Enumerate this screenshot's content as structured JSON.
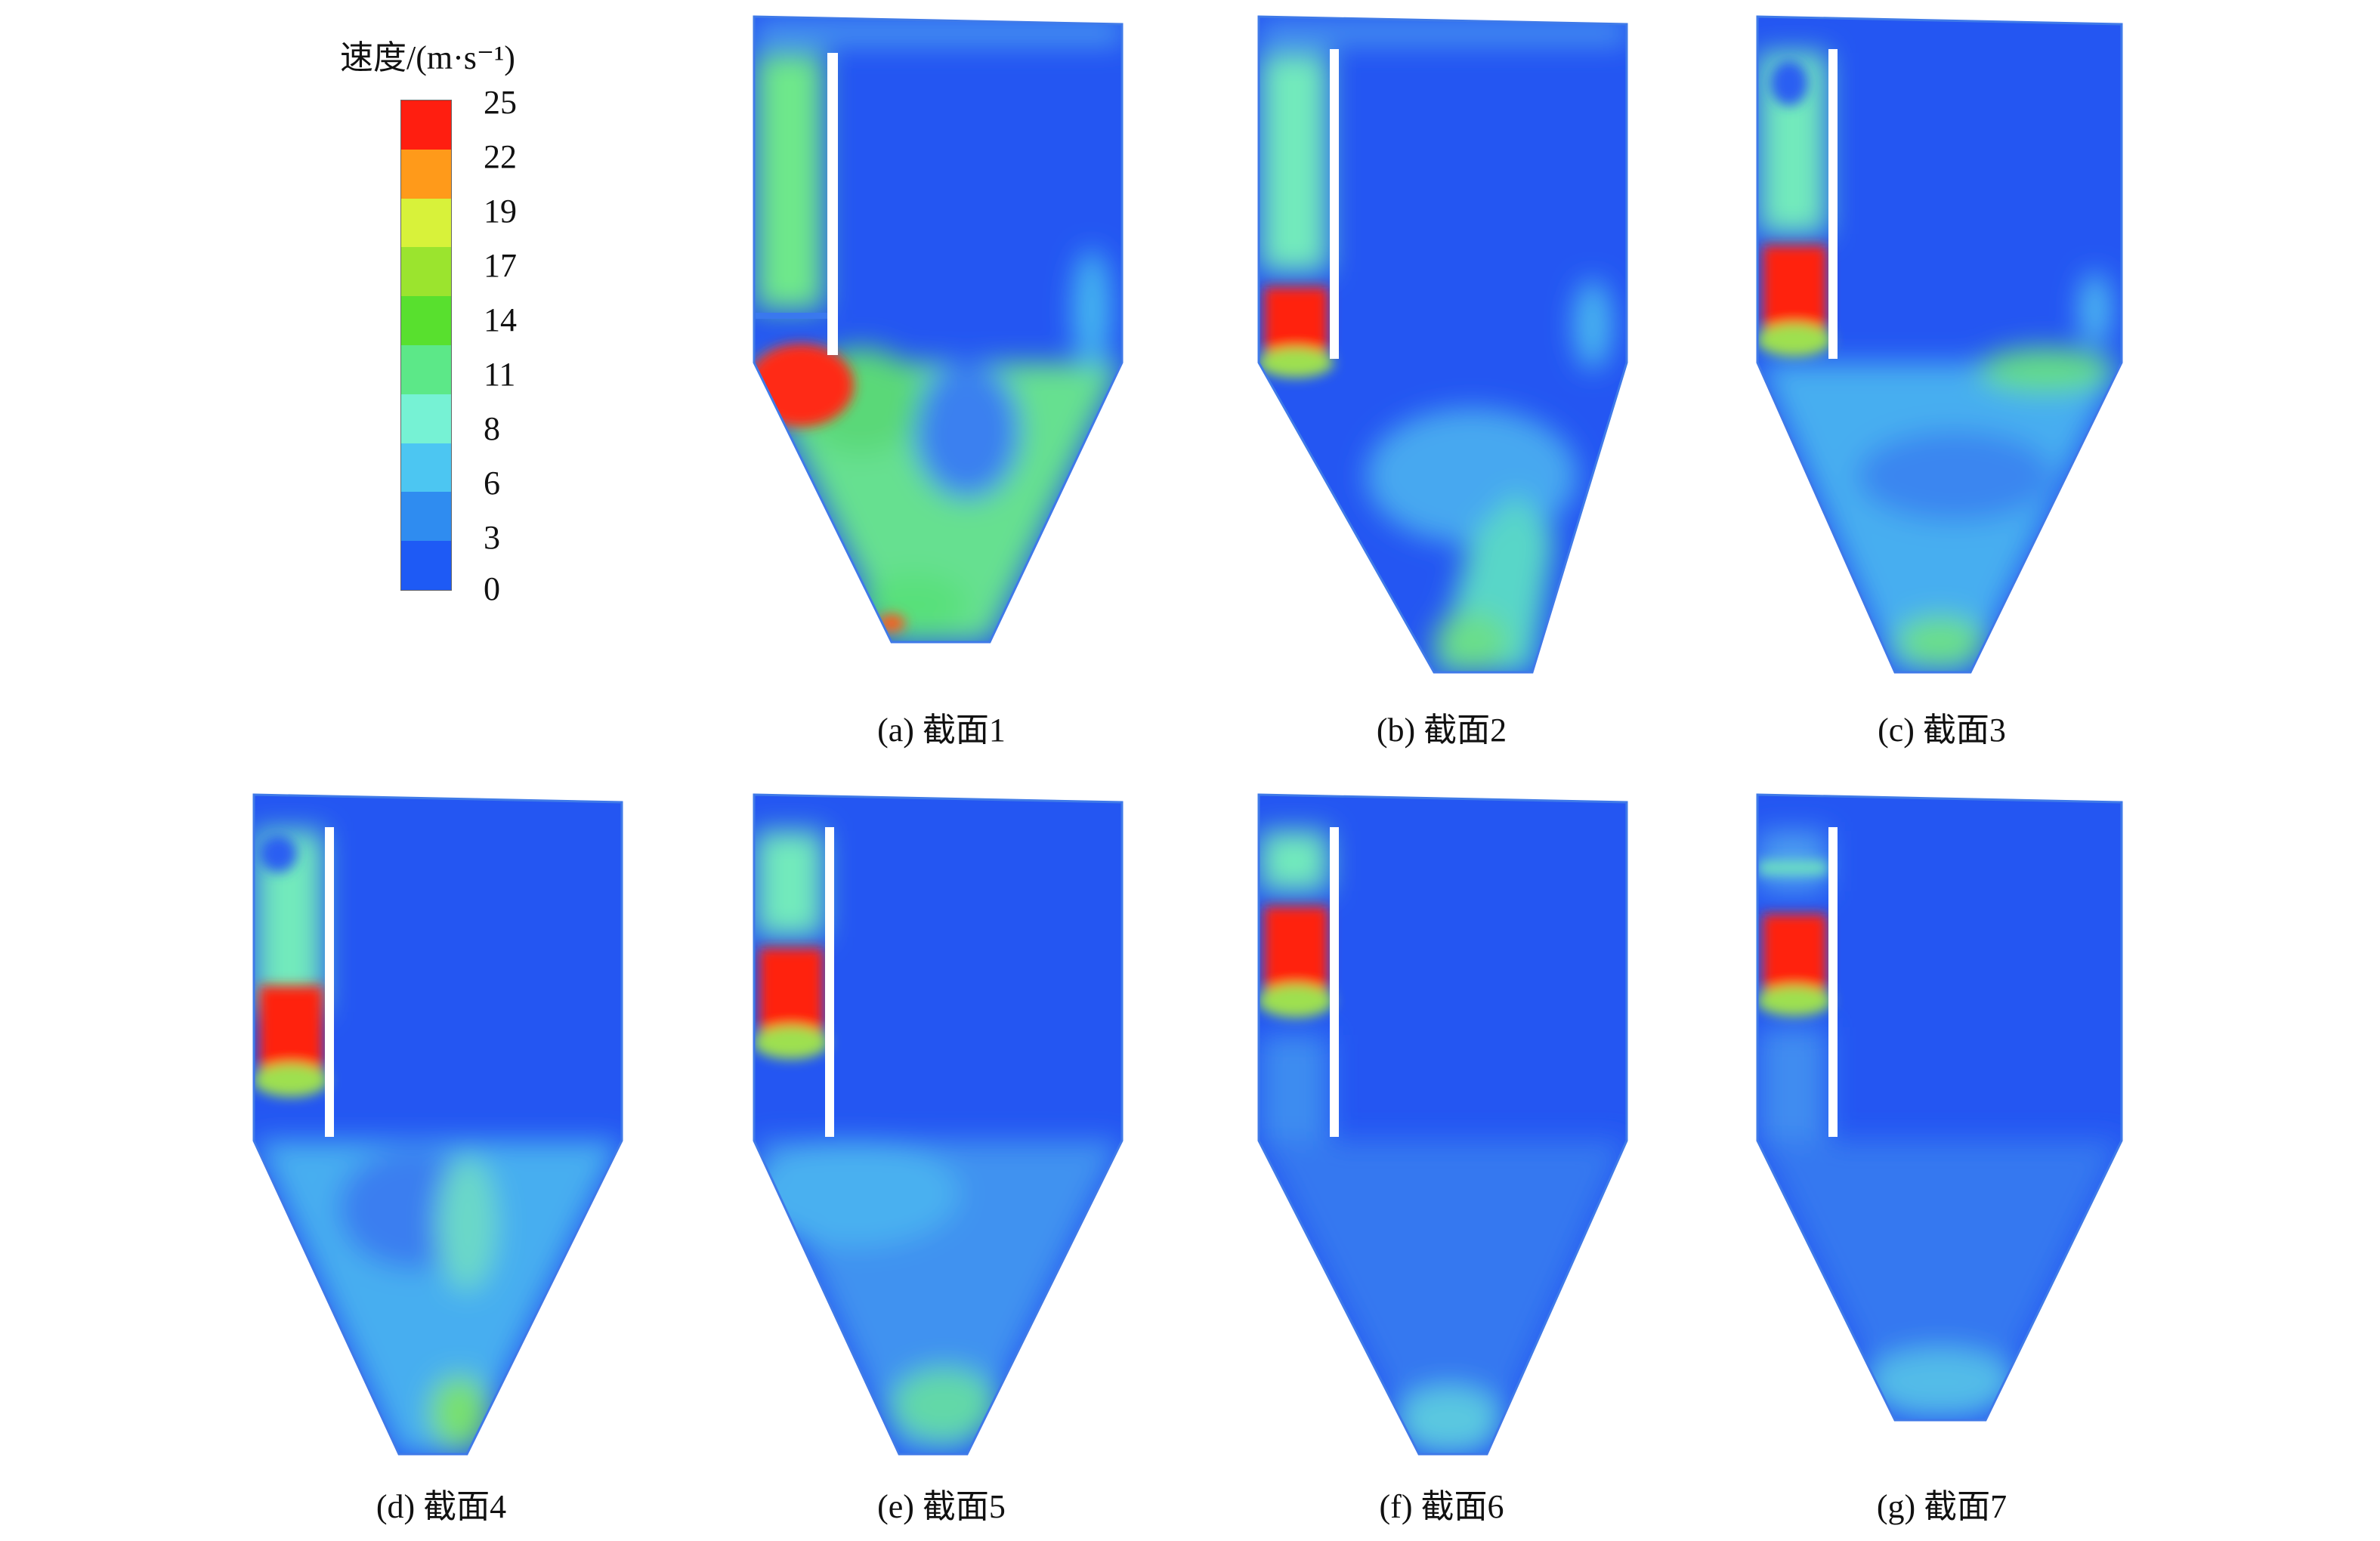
{
  "legend": {
    "title": "速度/(m·s⁻¹)",
    "ticks": [
      "25",
      "22",
      "19",
      "17",
      "14",
      "11",
      "8",
      "6",
      "3",
      "0"
    ],
    "colors": [
      "#ff1e10",
      "#ff9a1a",
      "#d8f23a",
      "#9be42e",
      "#58e02e",
      "#34e845",
      "#5ce888",
      "#76f2d4",
      "#4cc6f2",
      "#1e5af5"
    ]
  },
  "panels": [
    {
      "caption": "(a) 截面1"
    },
    {
      "caption": "(b) 截面2"
    },
    {
      "caption": "(c) 截面3"
    },
    {
      "caption": "(d) 截面4"
    },
    {
      "caption": "(e) 截面5"
    },
    {
      "caption": "(f) 截面6"
    },
    {
      "caption": "(g) 截面7"
    }
  ]
}
